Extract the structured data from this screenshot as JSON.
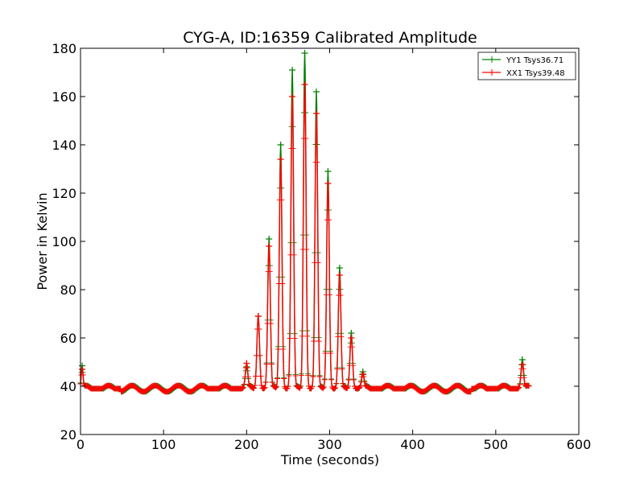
{
  "chart_data": {
    "type": "line",
    "title": "CYG-A, ID:16359 Calibrated Amplitude",
    "xlabel": "Time (seconds)",
    "ylabel": "Power in Kelvin",
    "xlim": [
      0,
      600
    ],
    "ylim": [
      20,
      180
    ],
    "xticks": [
      0,
      100,
      200,
      300,
      400,
      500,
      600
    ],
    "yticks": [
      20,
      40,
      60,
      80,
      100,
      120,
      140,
      160,
      180
    ],
    "grid": false,
    "legend_position": "top-right",
    "baseline": {
      "x_range": [
        0,
        540
      ],
      "mean": 39,
      "ripple_amplitude": 1.3,
      "ripple_period_seconds": 28
    },
    "series": [
      {
        "name": "YY1 Tsys36.71",
        "color": "#008000",
        "marker": "+",
        "peaks": [
          {
            "x": 2,
            "y": 48.5
          },
          {
            "x": 200,
            "y": 48
          },
          {
            "x": 214,
            "y": 69
          },
          {
            "x": 227,
            "y": 101
          },
          {
            "x": 241,
            "y": 140
          },
          {
            "x": 255,
            "y": 171
          },
          {
            "x": 270,
            "y": 178
          },
          {
            "x": 284,
            "y": 162
          },
          {
            "x": 298,
            "y": 129
          },
          {
            "x": 312,
            "y": 89
          },
          {
            "x": 326,
            "y": 62
          },
          {
            "x": 340,
            "y": 46
          },
          {
            "x": 532,
            "y": 51
          }
        ]
      },
      {
        "name": "XX1 Tsys39.48",
        "color": "#ff0000",
        "marker": "+",
        "peaks": [
          {
            "x": 2,
            "y": 47
          },
          {
            "x": 200,
            "y": 49.5
          },
          {
            "x": 214,
            "y": 69
          },
          {
            "x": 227,
            "y": 98
          },
          {
            "x": 241,
            "y": 134
          },
          {
            "x": 255,
            "y": 160
          },
          {
            "x": 270,
            "y": 165
          },
          {
            "x": 284,
            "y": 153
          },
          {
            "x": 298,
            "y": 124
          },
          {
            "x": 312,
            "y": 86
          },
          {
            "x": 326,
            "y": 60
          },
          {
            "x": 340,
            "y": 45
          },
          {
            "x": 532,
            "y": 49
          }
        ]
      }
    ]
  }
}
